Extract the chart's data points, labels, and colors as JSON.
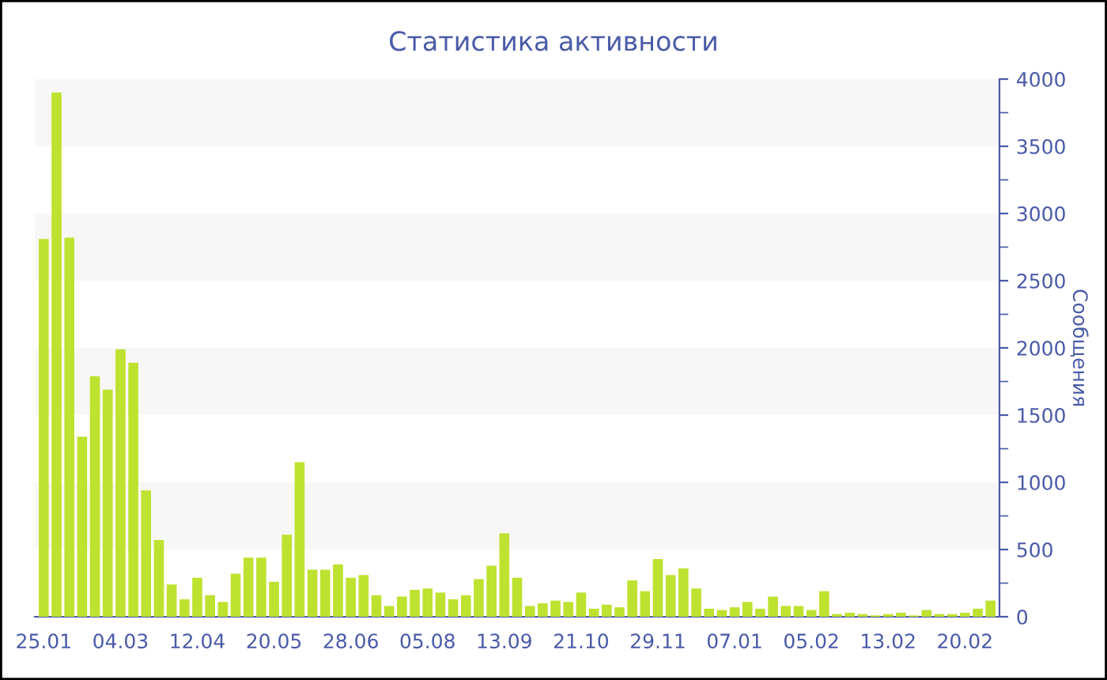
{
  "chart_data": {
    "type": "bar",
    "title": "Статистика активности",
    "ylabel": "Сообщения",
    "categories": [
      "25.01",
      null,
      null,
      null,
      null,
      null,
      "04.03",
      null,
      null,
      null,
      null,
      null,
      "12.04",
      null,
      null,
      null,
      null,
      null,
      "20.05",
      null,
      null,
      null,
      null,
      null,
      "28.06",
      null,
      null,
      null,
      null,
      null,
      "05.08",
      null,
      null,
      null,
      null,
      null,
      "13.09",
      null,
      null,
      null,
      null,
      null,
      "21.10",
      null,
      null,
      null,
      null,
      null,
      "29.11",
      null,
      null,
      null,
      null,
      null,
      "07.01",
      null,
      null,
      null,
      null,
      null,
      "05.02",
      null,
      null,
      null,
      null,
      null,
      "13.02",
      null,
      null,
      null,
      null,
      null,
      "20.02",
      null,
      null
    ],
    "values": [
      2810,
      3900,
      2820,
      1340,
      1790,
      1690,
      1990,
      1890,
      940,
      570,
      240,
      130,
      290,
      160,
      110,
      320,
      440,
      440,
      260,
      610,
      1150,
      350,
      350,
      390,
      290,
      310,
      160,
      80,
      150,
      200,
      210,
      180,
      130,
      160,
      280,
      380,
      620,
      290,
      80,
      100,
      120,
      110,
      180,
      60,
      90,
      70,
      270,
      190,
      430,
      310,
      360,
      210,
      60,
      50,
      70,
      110,
      60,
      150,
      80,
      80,
      50,
      190,
      20,
      30,
      20,
      10,
      20,
      30,
      10,
      50,
      20,
      20,
      30,
      60,
      120
    ],
    "color": "#bde22f",
    "ylim": [
      0,
      4000
    ],
    "yticks": [
      0,
      500,
      1000,
      1500,
      2000,
      2500,
      3000,
      3500,
      4000
    ],
    "bands": [
      {
        "axis": "y",
        "from": 500,
        "to": 1000,
        "color": "#f7f7f7"
      },
      {
        "axis": "y",
        "from": 1500,
        "to": 2000,
        "color": "#f7f7f7"
      },
      {
        "axis": "y",
        "from": 2500,
        "to": 3000,
        "color": "#f7f7f7"
      },
      {
        "axis": "y",
        "from": 3500,
        "to": 4000,
        "color": "#f7f7f7"
      }
    ],
    "grid": false,
    "legend": false
  }
}
